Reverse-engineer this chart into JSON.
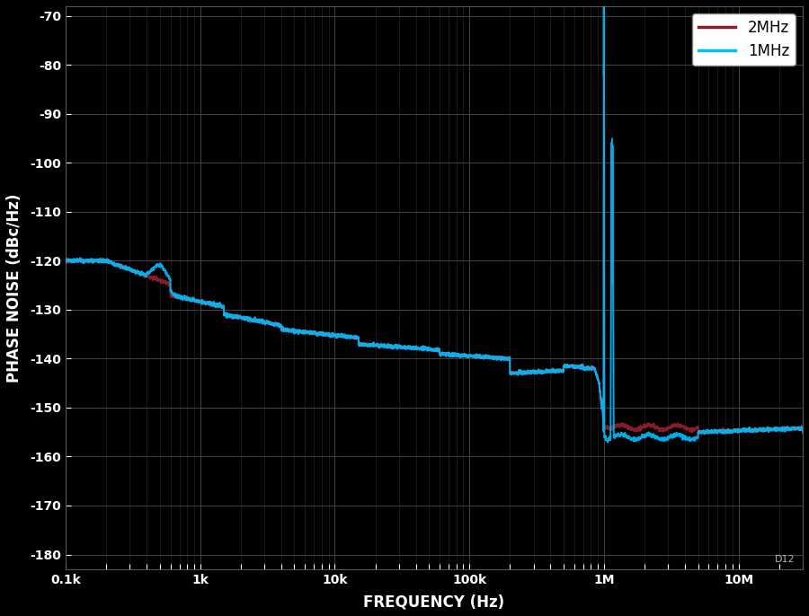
{
  "background_color": "#000000",
  "plot_bg_color": "#000000",
  "xlabel": "FREQUENCY (Hz)",
  "ylabel": "PHASE NOISE (dBc/Hz)",
  "xlabel_color": "#ffffff",
  "ylabel_color": "#ffffff",
  "tick_color": "#ffffff",
  "xlim": [
    100,
    30000000
  ],
  "ylim": [
    -183,
    -68
  ],
  "ytick_vals": [
    -180,
    -170,
    -160,
    -150,
    -140,
    -130,
    -120,
    -110,
    -100,
    -90,
    -80,
    -70
  ],
  "xtick_positions": [
    100,
    1000,
    10000,
    100000,
    1000000,
    10000000
  ],
  "xtick_labels": [
    "0.1k",
    "1k",
    "10k",
    "100k",
    "1M",
    "10M"
  ],
  "line_2mhz_color": "#8B1A2A",
  "line_1mhz_color": "#00BFFF",
  "legend_labels": [
    "2MHz",
    "1MHz"
  ],
  "legend_colors": [
    "#8B1A2A",
    "#00BFFF"
  ],
  "watermark": "D12",
  "font_size_axis_label": 12,
  "font_size_tick": 10,
  "grid_major_color": "#444444",
  "grid_minor_color": "#2a2a2a"
}
